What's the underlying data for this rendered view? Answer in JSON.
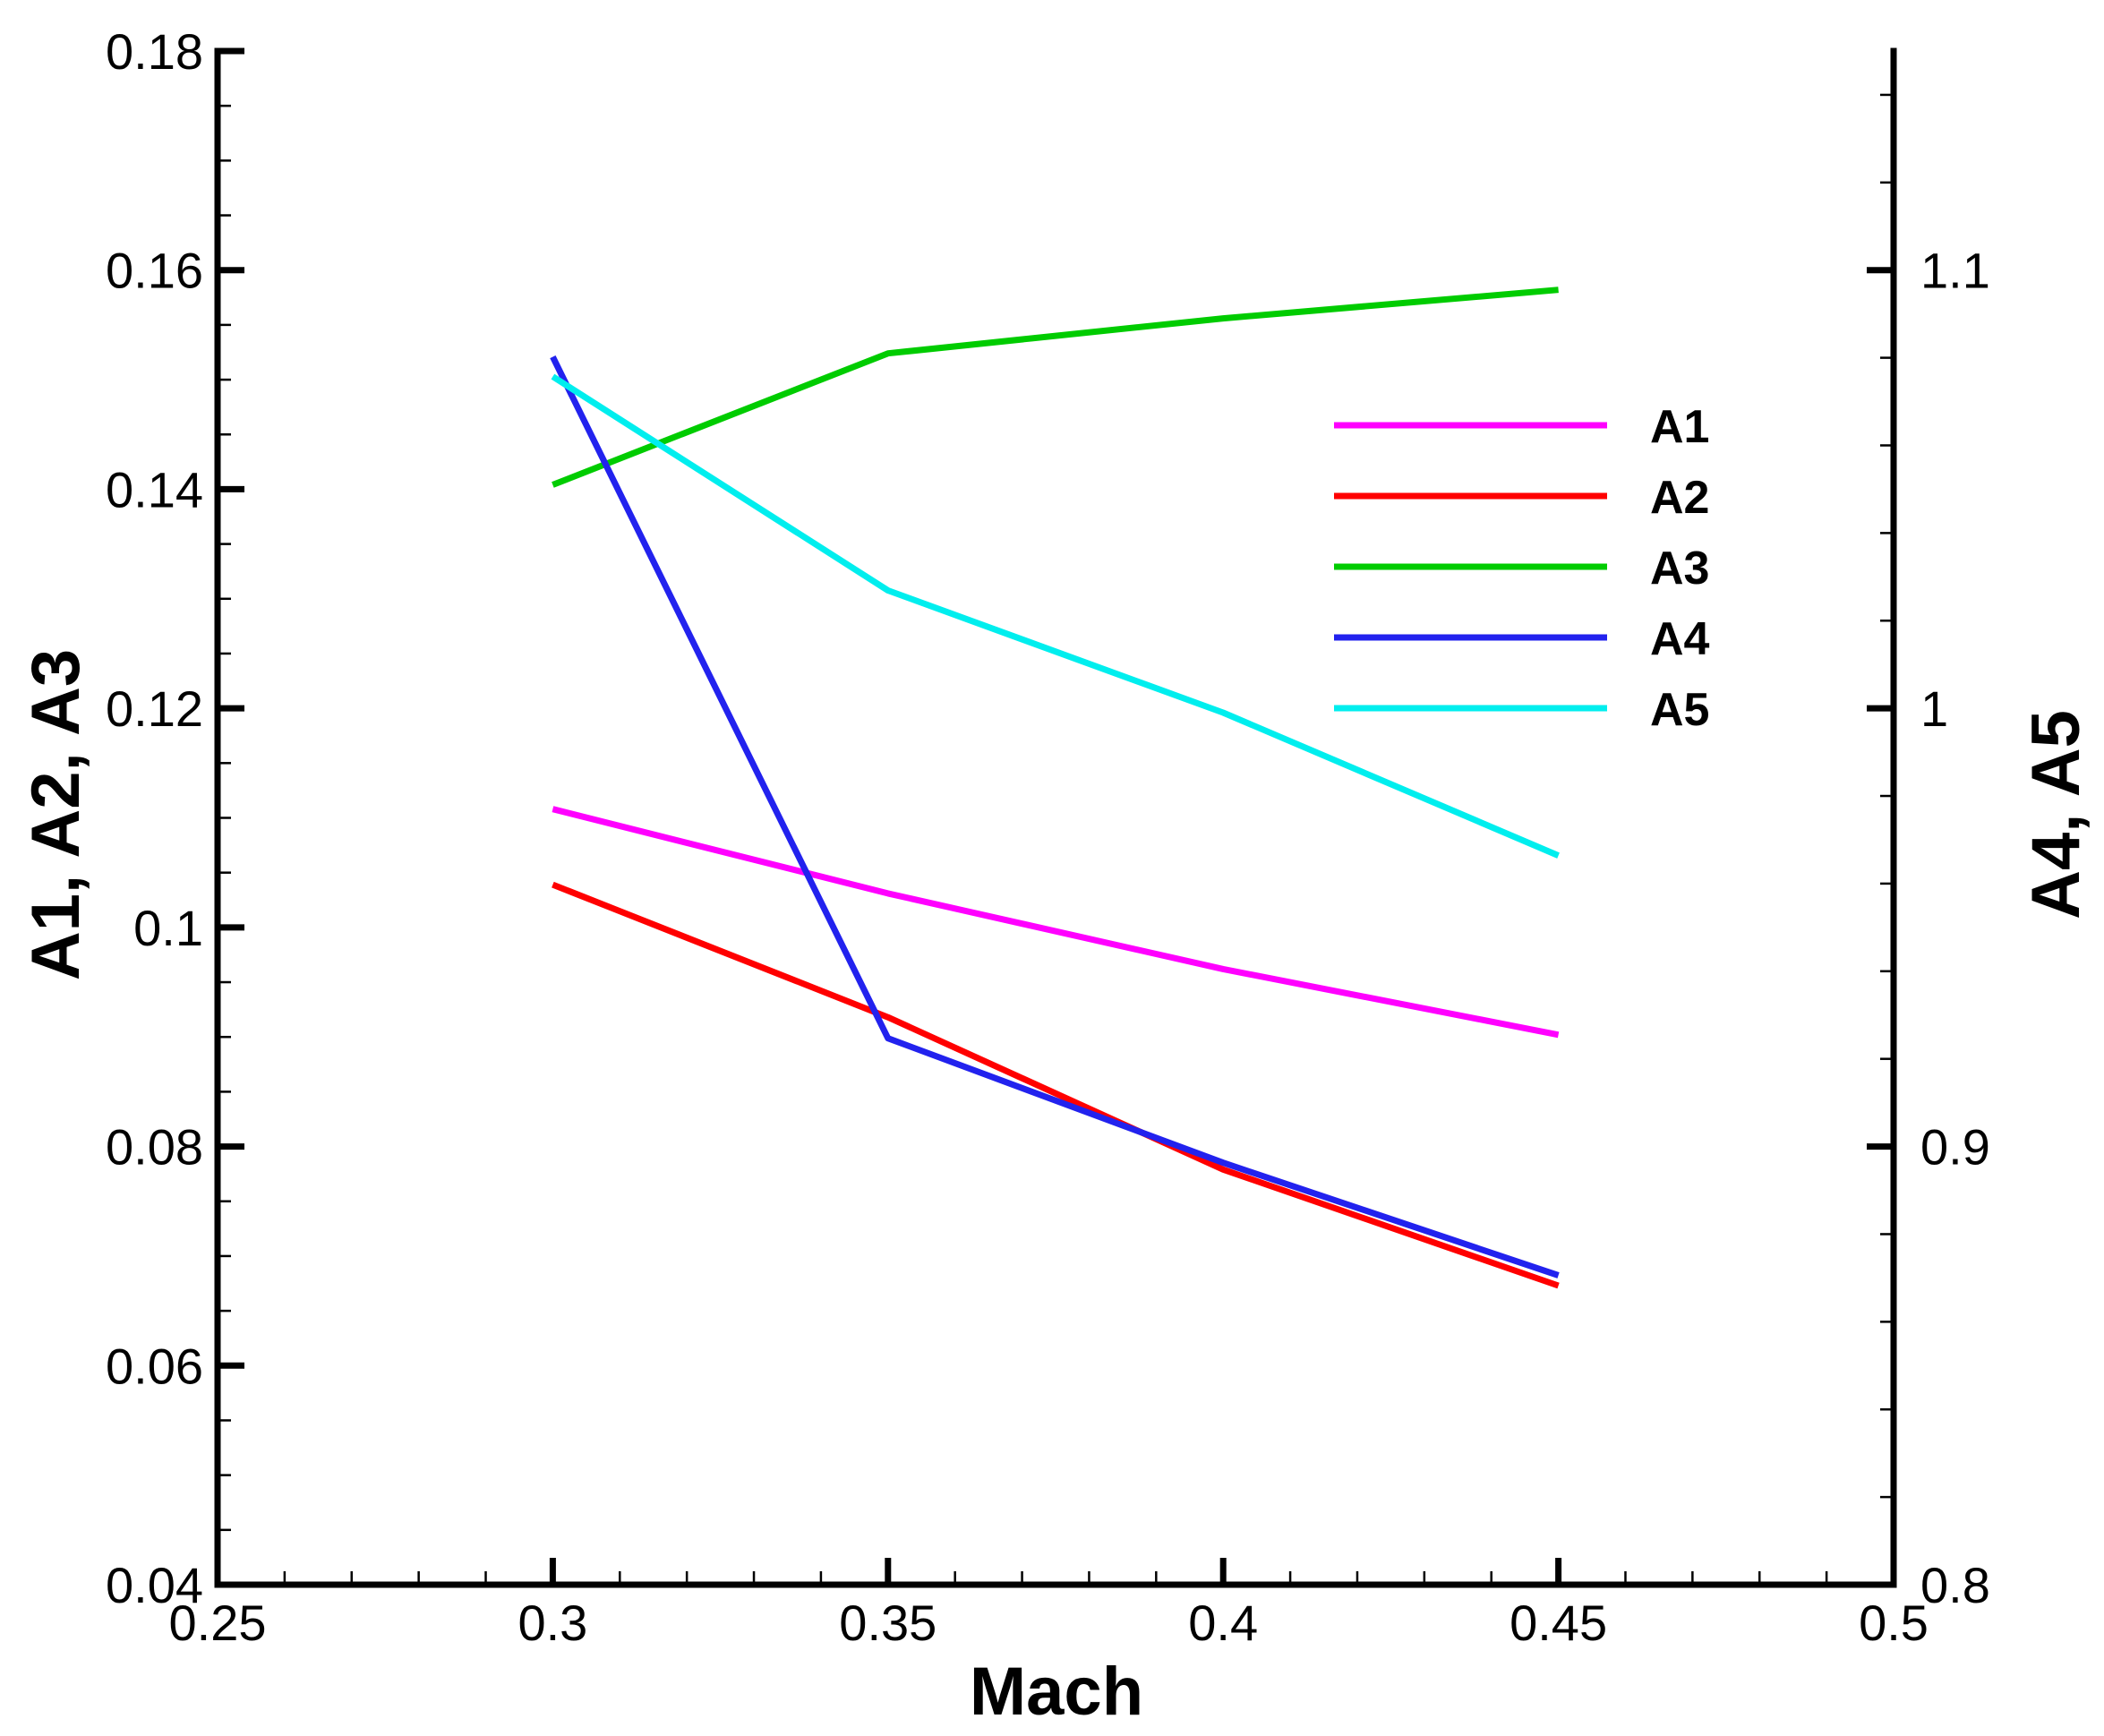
{
  "chart_data": {
    "type": "line",
    "xlabel": "Mach",
    "ylabel_left": "A1, A2, A3",
    "ylabel_right": "A4, A5",
    "xlim": [
      0.25,
      0.5
    ],
    "ylim_left": [
      0.04,
      0.18
    ],
    "ylim_right": [
      0.8,
      1.15
    ],
    "x_ticks": [
      "0.25",
      "0.3",
      "0.35",
      "0.4",
      "0.45",
      "0.5"
    ],
    "y_left_ticks": [
      "0.04",
      "0.06",
      "0.08",
      "0.1",
      "0.12",
      "0.14",
      "0.16",
      "0.18"
    ],
    "y_right_ticks": [
      "0.8",
      "0.9",
      "1",
      "1.1"
    ],
    "legend_position": "upper-right",
    "grid": false,
    "series": [
      {
        "name": "A1",
        "axis": "left",
        "color": "#ff00ff",
        "x": [
          0.3,
          0.35,
          0.4,
          0.45
        ],
        "values": [
          0.1108,
          0.1031,
          0.0962,
          0.0902
        ]
      },
      {
        "name": "A2",
        "axis": "left",
        "color": "#ff0000",
        "x": [
          0.3,
          0.35,
          0.4,
          0.45
        ],
        "values": [
          0.1039,
          0.0918,
          0.0779,
          0.0673
        ]
      },
      {
        "name": "A3",
        "axis": "left",
        "color": "#00cc00",
        "x": [
          0.3,
          0.35,
          0.4,
          0.45
        ],
        "values": [
          0.1404,
          0.1524,
          0.1556,
          0.1582
        ]
      },
      {
        "name": "A4",
        "axis": "right",
        "color": "#2222ee",
        "x": [
          0.3,
          0.35,
          0.4,
          0.45
        ],
        "values": [
          1.0802,
          0.9247,
          0.8963,
          0.8706
        ]
      },
      {
        "name": "A5",
        "axis": "right",
        "color": "#00eeee",
        "x": [
          0.3,
          0.35,
          0.4,
          0.45
        ],
        "values": [
          1.0757,
          1.0269,
          0.999,
          0.9664
        ]
      }
    ]
  }
}
